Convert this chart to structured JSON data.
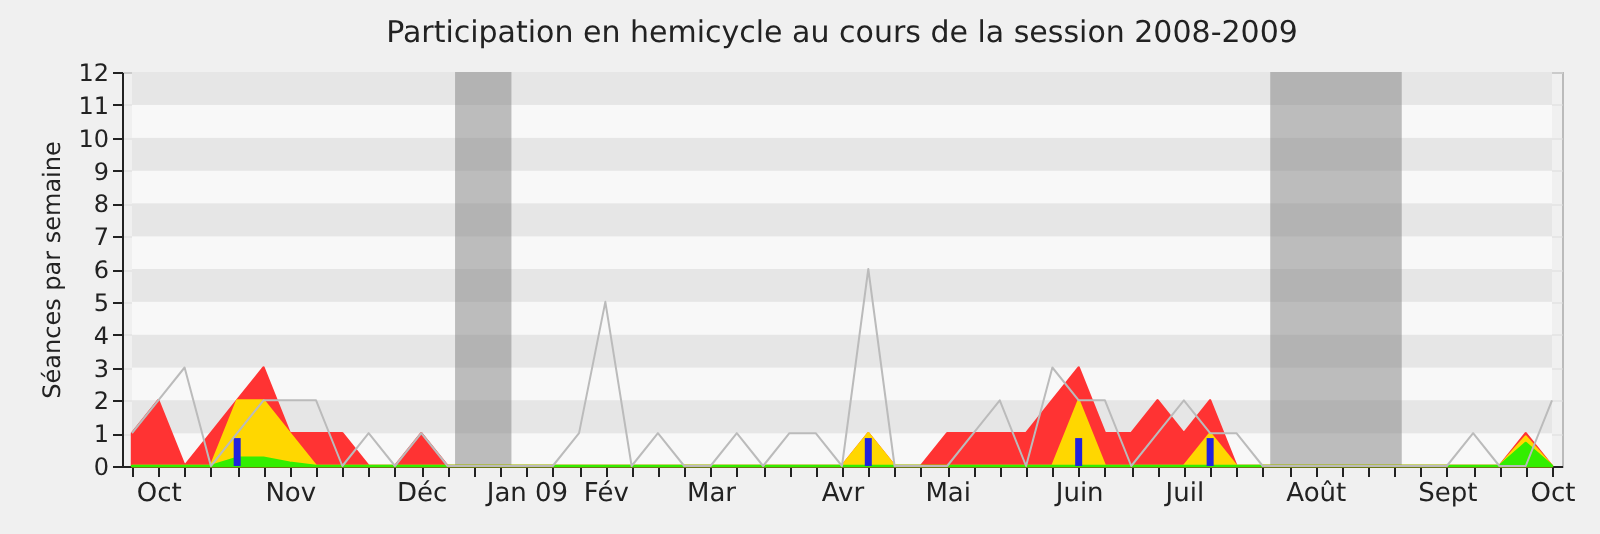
{
  "chart_data": {
    "type": "area",
    "title": "Participation en hemicycle au cours de la session 2008-2009",
    "ylabel": "Séances par semaine",
    "x": [
      "2008-09-29",
      "2008-10-06",
      "2008-10-13",
      "2008-10-20",
      "2008-10-27",
      "2008-11-03",
      "2008-11-10",
      "2008-11-17",
      "2008-11-24",
      "2008-12-01",
      "2008-12-08",
      "2008-12-15",
      "2008-12-22",
      "2008-12-29",
      "2009-01-05",
      "2009-01-12",
      "2009-01-19",
      "2009-01-26",
      "2009-02-02",
      "2009-02-09",
      "2009-02-16",
      "2009-02-23",
      "2009-03-02",
      "2009-03-09",
      "2009-03-16",
      "2009-03-23",
      "2009-03-30",
      "2009-04-06",
      "2009-04-13",
      "2009-04-20",
      "2009-04-27",
      "2009-05-04",
      "2009-05-11",
      "2009-05-18",
      "2009-05-25",
      "2009-06-01",
      "2009-06-08",
      "2009-06-15",
      "2009-06-22",
      "2009-06-29",
      "2009-07-06",
      "2009-07-13",
      "2009-07-20",
      "2009-07-27",
      "2009-08-03",
      "2009-08-10",
      "2009-08-17",
      "2009-08-24",
      "2009-08-31",
      "2009-09-07",
      "2009-09-14",
      "2009-09-21",
      "2009-09-28",
      "2009-10-05",
      "2009-10-12"
    ],
    "xlim": [
      "2008-09-29",
      "2009-10-12"
    ],
    "ylim": [
      0,
      12
    ],
    "yticks": [
      0,
      1,
      2,
      3,
      4,
      5,
      6,
      7,
      8,
      9,
      10,
      11,
      12
    ],
    "xticks": [
      {
        "value": "2008-09-29",
        "label": null
      },
      {
        "value": "2008-10-06",
        "label": "Oct"
      },
      {
        "value": "2008-10-13",
        "label": null
      },
      {
        "value": "2008-10-20",
        "label": null
      },
      {
        "value": "2008-10-27",
        "label": null
      },
      {
        "value": "2008-11-03",
        "label": null
      },
      {
        "value": "2008-11-10",
        "label": "Nov"
      },
      {
        "value": "2008-11-17",
        "label": null
      },
      {
        "value": "2008-11-24",
        "label": null
      },
      {
        "value": "2008-12-01",
        "label": null
      },
      {
        "value": "2008-12-08",
        "label": null
      },
      {
        "value": "2008-12-15",
        "label": "Déc"
      },
      {
        "value": "2008-12-22",
        "label": null
      },
      {
        "value": "2008-12-29",
        "label": null
      },
      {
        "value": "2009-01-05",
        "label": null
      },
      {
        "value": "2009-01-12",
        "label": "Jan 09"
      },
      {
        "value": "2009-01-19",
        "label": null
      },
      {
        "value": "2009-01-26",
        "label": null
      },
      {
        "value": "2009-02-02",
        "label": "Fév"
      },
      {
        "value": "2009-02-09",
        "label": null
      },
      {
        "value": "2009-02-16",
        "label": null
      },
      {
        "value": "2009-02-23",
        "label": null
      },
      {
        "value": "2009-03-02",
        "label": "Mar"
      },
      {
        "value": "2009-03-09",
        "label": null
      },
      {
        "value": "2009-03-16",
        "label": null
      },
      {
        "value": "2009-03-23",
        "label": null
      },
      {
        "value": "2009-03-30",
        "label": null
      },
      {
        "value": "2009-04-06",
        "label": "Avr"
      },
      {
        "value": "2009-04-13",
        "label": null
      },
      {
        "value": "2009-04-20",
        "label": null
      },
      {
        "value": "2009-04-27",
        "label": null
      },
      {
        "value": "2009-05-04",
        "label": "Mai"
      },
      {
        "value": "2009-05-11",
        "label": null
      },
      {
        "value": "2009-05-18",
        "label": null
      },
      {
        "value": "2009-05-25",
        "label": null
      },
      {
        "value": "2009-06-01",
        "label": null
      },
      {
        "value": "2009-06-08",
        "label": "Juin"
      },
      {
        "value": "2009-06-15",
        "label": null
      },
      {
        "value": "2009-06-22",
        "label": null
      },
      {
        "value": "2009-06-29",
        "label": null
      },
      {
        "value": "2009-07-06",
        "label": "Juil"
      },
      {
        "value": "2009-07-13",
        "label": null
      },
      {
        "value": "2009-07-20",
        "label": null
      },
      {
        "value": "2009-07-27",
        "label": null
      },
      {
        "value": "2009-08-03",
        "label": null
      },
      {
        "value": "2009-08-10",
        "label": "Août"
      },
      {
        "value": "2009-08-17",
        "label": null
      },
      {
        "value": "2009-08-24",
        "label": null
      },
      {
        "value": "2009-08-31",
        "label": null
      },
      {
        "value": "2009-09-07",
        "label": null
      },
      {
        "value": "2009-09-14",
        "label": "Sept"
      },
      {
        "value": "2009-09-21",
        "label": null
      },
      {
        "value": "2009-09-28",
        "label": null
      },
      {
        "value": "2009-10-05",
        "label": null
      },
      {
        "value": "2009-10-12",
        "label": "Oct"
      }
    ],
    "grid": "y",
    "bands": [
      {
        "axis": "x",
        "from": "2008-12-24",
        "to": "2009-01-08",
        "color": "#808080"
      },
      {
        "axis": "x",
        "from": "2009-07-29",
        "to": "2009-09-02",
        "color": "#808080"
      }
    ],
    "series": [
      {
        "type": "line",
        "color": "#bbbbbb",
        "values": [
          1,
          2,
          3,
          0,
          1,
          2,
          2,
          2,
          0,
          1,
          0,
          1,
          0,
          0,
          0,
          0,
          0,
          1,
          5,
          0,
          1,
          0,
          0,
          1,
          0,
          1,
          1,
          0,
          6,
          0,
          0,
          0,
          1,
          2,
          0,
          3,
          2,
          2,
          0,
          1,
          2,
          1,
          1,
          0,
          0,
          0,
          0,
          0,
          0,
          0,
          0,
          1,
          0,
          0,
          2
        ]
      },
      {
        "color": "#ff3333",
        "values": [
          1,
          2,
          0,
          1,
          2,
          3,
          1,
          1,
          1,
          0,
          0,
          1,
          0,
          0,
          0,
          0,
          0,
          0,
          0,
          0,
          0,
          0,
          0,
          0,
          0,
          0,
          0,
          0,
          1,
          0,
          0,
          1,
          1,
          1,
          1,
          2,
          3,
          1,
          1,
          2,
          1,
          2,
          0,
          0,
          0,
          0,
          0,
          0,
          0,
          0,
          0,
          0,
          0,
          1,
          0
        ]
      },
      {
        "color": "#ffd700",
        "values": [
          0,
          0,
          0,
          0,
          2,
          2,
          1,
          0,
          0,
          0,
          0,
          0,
          0,
          0,
          0,
          0,
          0,
          0,
          0,
          0,
          0,
          0,
          0,
          0,
          0,
          0,
          0,
          0,
          1,
          0,
          0,
          0,
          0,
          0,
          0,
          0,
          2,
          0,
          0,
          0,
          0,
          1,
          0,
          0,
          0,
          0,
          0,
          0,
          0,
          0,
          0,
          0,
          0,
          0.9,
          0
        ]
      },
      {
        "color": "#33ee00",
        "values": [
          0,
          0,
          0,
          0,
          0.25,
          0.25,
          0.1,
          0,
          0,
          0,
          0,
          0,
          0,
          0,
          0,
          0,
          0,
          0,
          0,
          0,
          0,
          0,
          0,
          0,
          0,
          0,
          0,
          0,
          0,
          0,
          0,
          0,
          0,
          0,
          0,
          0,
          0,
          0,
          0,
          0,
          0,
          0,
          0,
          0,
          0,
          0,
          0,
          0,
          0,
          0,
          0,
          0,
          0,
          0.7,
          0
        ]
      },
      {
        "type": "bar",
        "color": "#2222dd",
        "values": [
          null,
          null,
          null,
          null,
          0.85,
          null,
          null,
          null,
          null,
          null,
          null,
          null,
          null,
          null,
          null,
          null,
          null,
          null,
          null,
          null,
          null,
          null,
          null,
          null,
          null,
          null,
          null,
          null,
          0.85,
          null,
          null,
          null,
          null,
          null,
          null,
          null,
          0.85,
          null,
          null,
          null,
          null,
          0.85,
          null,
          null,
          null,
          null,
          null,
          null,
          null,
          null,
          null,
          null,
          null,
          null,
          null
        ]
      }
    ]
  }
}
